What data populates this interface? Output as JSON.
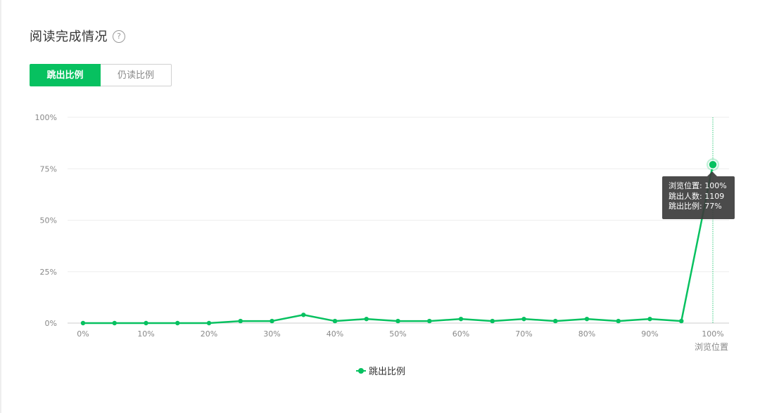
{
  "page": {
    "title": "阅读完成情况",
    "help_icon": "question-circle-icon"
  },
  "tabs": [
    {
      "label": "跳出比例",
      "active": true
    },
    {
      "label": "仍读比例",
      "active": false
    }
  ],
  "colors": {
    "accent": "#07c160",
    "grid": "#eeeeee",
    "axis": "#cccccc",
    "tick_text": "#888888",
    "tooltip_bg": "#3c3c3c"
  },
  "tooltip": {
    "lines": [
      "浏览位置: 100%",
      "跳出人数: 1109",
      "跳出比例: 77%"
    ]
  },
  "chart_data": {
    "type": "line",
    "xlabel": "浏览位置",
    "ylabel": "",
    "x": [
      0,
      5,
      10,
      15,
      20,
      25,
      30,
      35,
      40,
      45,
      50,
      55,
      60,
      65,
      70,
      75,
      80,
      85,
      90,
      95,
      100
    ],
    "x_ticks": [
      "0%",
      "10%",
      "20%",
      "30%",
      "40%",
      "50%",
      "60%",
      "70%",
      "80%",
      "90%",
      "100%"
    ],
    "y_ticks": [
      "0%",
      "25%",
      "50%",
      "75%",
      "100%"
    ],
    "ylim": [
      0,
      100
    ],
    "xlim": [
      0,
      100
    ],
    "grid": true,
    "legend_position": "bottom-center",
    "highlight_x": 100,
    "series": [
      {
        "name": "跳出比例",
        "color": "#07c160",
        "values": [
          0,
          0,
          0,
          0,
          0,
          1,
          1,
          4,
          1,
          2,
          1,
          1,
          2,
          1,
          2,
          1,
          2,
          1,
          2,
          1,
          77
        ]
      }
    ]
  }
}
